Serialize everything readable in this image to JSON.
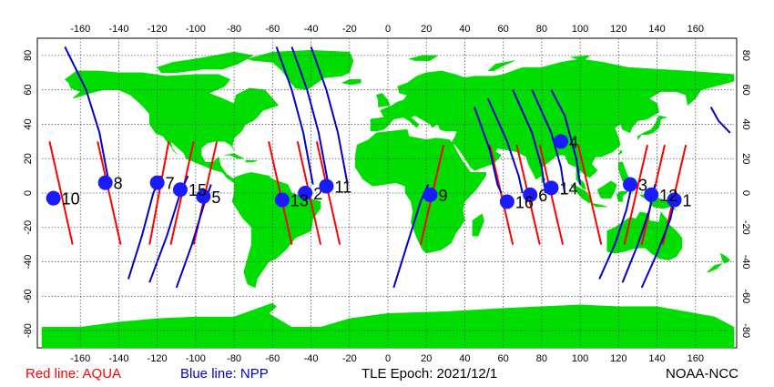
{
  "colors": {
    "land": "#00dd00",
    "ocean": "#ffffff",
    "aqua_line": "#ff0000",
    "npp_line": "#0000cc",
    "marker": "#1a1aff",
    "grid": "#555555"
  },
  "axes": {
    "lon_ticks": [
      "-160",
      "-140",
      "-120",
      "-100",
      "-80",
      "-60",
      "-40",
      "-20",
      "0",
      "20",
      "40",
      "60",
      "80",
      "100",
      "120",
      "140",
      "160"
    ],
    "lat_ticks": [
      "80",
      "60",
      "40",
      "20",
      "0",
      "-20",
      "-40",
      "-60",
      "-80"
    ]
  },
  "legend": {
    "aqua_label": "Red line: AQUA",
    "npp_label": "Blue line: NPP"
  },
  "epoch_label": "TLE Epoch: 2021/12/1",
  "credit": "NOAA-NCC",
  "map_data": {
    "projection": "equirectangular",
    "lon_range": [
      -180,
      180
    ],
    "lat_range": [
      -90,
      90
    ],
    "grid": true,
    "aqua_tracks": [
      {
        "start": [
          -176,
          30
        ],
        "end": [
          -164,
          -30
        ]
      },
      {
        "start": [
          -151,
          30
        ],
        "end": [
          -139,
          -30
        ]
      },
      {
        "start": [
          -114,
          30
        ],
        "end": [
          -124,
          -30
        ]
      },
      {
        "start": [
          -101,
          30
        ],
        "end": [
          -113,
          -30
        ]
      },
      {
        "start": [
          -89,
          30
        ],
        "end": [
          -101,
          -30
        ]
      },
      {
        "start": [
          -62,
          30
        ],
        "end": [
          -50,
          -30
        ]
      },
      {
        "start": [
          -47,
          30
        ],
        "end": [
          -35,
          -30
        ]
      },
      {
        "start": [
          -37,
          30
        ],
        "end": [
          -25,
          -30
        ]
      },
      {
        "start": [
          29,
          28
        ],
        "end": [
          17,
          -30
        ]
      },
      {
        "start": [
          53,
          28
        ],
        "end": [
          65,
          -30
        ]
      },
      {
        "start": [
          67,
          28
        ],
        "end": [
          79,
          -30
        ]
      },
      {
        "start": [
          79,
          28
        ],
        "end": [
          91,
          -30
        ]
      },
      {
        "start": [
          99,
          28
        ],
        "end": [
          111,
          -30
        ]
      },
      {
        "start": [
          135,
          28
        ],
        "end": [
          123,
          -30
        ]
      },
      {
        "start": [
          144,
          28
        ],
        "end": [
          132,
          -30
        ]
      },
      {
        "start": [
          155,
          28
        ],
        "end": [
          143,
          -30
        ]
      }
    ],
    "npp_tracks": [
      [
        [
          -168,
          85
        ],
        [
          -157,
          60
        ],
        [
          -150,
          35
        ],
        [
          -145,
          5
        ]
      ],
      [
        [
          -58,
          85
        ],
        [
          -50,
          60
        ],
        [
          -44,
          35
        ],
        [
          -39,
          5
        ]
      ],
      [
        [
          -50,
          85
        ],
        [
          -42,
          60
        ],
        [
          -36,
          35
        ],
        [
          -31,
          5
        ]
      ],
      [
        [
          -40,
          85
        ],
        [
          -32,
          60
        ],
        [
          -26,
          35
        ],
        [
          -21,
          5
        ]
      ],
      [
        [
          -135,
          -50
        ],
        [
          -128,
          -25
        ],
        [
          -122,
          0
        ],
        [
          -118,
          10
        ]
      ],
      [
        [
          -124,
          -52
        ],
        [
          -115,
          -25
        ],
        [
          -108,
          0
        ],
        [
          -104,
          10
        ]
      ],
      [
        [
          -110,
          -55
        ],
        [
          -102,
          -30
        ],
        [
          -96,
          -8
        ],
        [
          -92,
          5
        ]
      ],
      [
        [
          3,
          -55
        ],
        [
          10,
          -30
        ],
        [
          17,
          -5
        ],
        [
          21,
          5
        ]
      ],
      [
        [
          45,
          50
        ],
        [
          53,
          25
        ],
        [
          57,
          5
        ],
        [
          59,
          0
        ]
      ],
      [
        [
          52,
          55
        ],
        [
          62,
          30
        ],
        [
          68,
          10
        ],
        [
          70,
          0
        ]
      ],
      [
        [
          65,
          60
        ],
        [
          75,
          35
        ],
        [
          80,
          15
        ],
        [
          82,
          0
        ]
      ],
      [
        [
          75,
          60
        ],
        [
          85,
          35
        ],
        [
          90,
          15
        ],
        [
          92,
          0
        ]
      ],
      [
        [
          85,
          60
        ],
        [
          92,
          45
        ],
        [
          98,
          20
        ],
        [
          100,
          5
        ]
      ],
      [
        [
          168,
          50
        ],
        [
          172,
          42
        ],
        [
          178,
          35
        ]
      ],
      [
        [
          110,
          -50
        ],
        [
          118,
          -30
        ],
        [
          124,
          -10
        ],
        [
          127,
          5
        ]
      ],
      [
        [
          122,
          -52
        ],
        [
          130,
          -30
        ],
        [
          136,
          -10
        ],
        [
          139,
          5
        ]
      ],
      [
        [
          132,
          -55
        ],
        [
          140,
          -35
        ],
        [
          147,
          -15
        ],
        [
          150,
          0
        ]
      ]
    ],
    "markers": [
      {
        "label": "1",
        "lon": 149,
        "lat": -4
      },
      {
        "label": "2",
        "lon": -43,
        "lat": 0
      },
      {
        "label": "3",
        "lon": 126,
        "lat": 5
      },
      {
        "label": "4",
        "lon": 90,
        "lat": 30
      },
      {
        "label": "5",
        "lon": -96,
        "lat": -2
      },
      {
        "label": "6",
        "lon": 74,
        "lat": -1
      },
      {
        "label": "7",
        "lon": -120,
        "lat": 6
      },
      {
        "label": "8",
        "lon": -147,
        "lat": 6
      },
      {
        "label": "9",
        "lon": 22,
        "lat": -1
      },
      {
        "label": "10",
        "lon": -174,
        "lat": -3
      },
      {
        "label": "11",
        "lon": -32,
        "lat": 4
      },
      {
        "label": "12",
        "lon": 137,
        "lat": -1
      },
      {
        "label": "13",
        "lon": -55,
        "lat": -4
      },
      {
        "label": "14",
        "lon": 85,
        "lat": 3
      },
      {
        "label": "15",
        "lon": -108,
        "lat": 2
      },
      {
        "label": "16",
        "lon": 62,
        "lat": -5
      }
    ]
  }
}
